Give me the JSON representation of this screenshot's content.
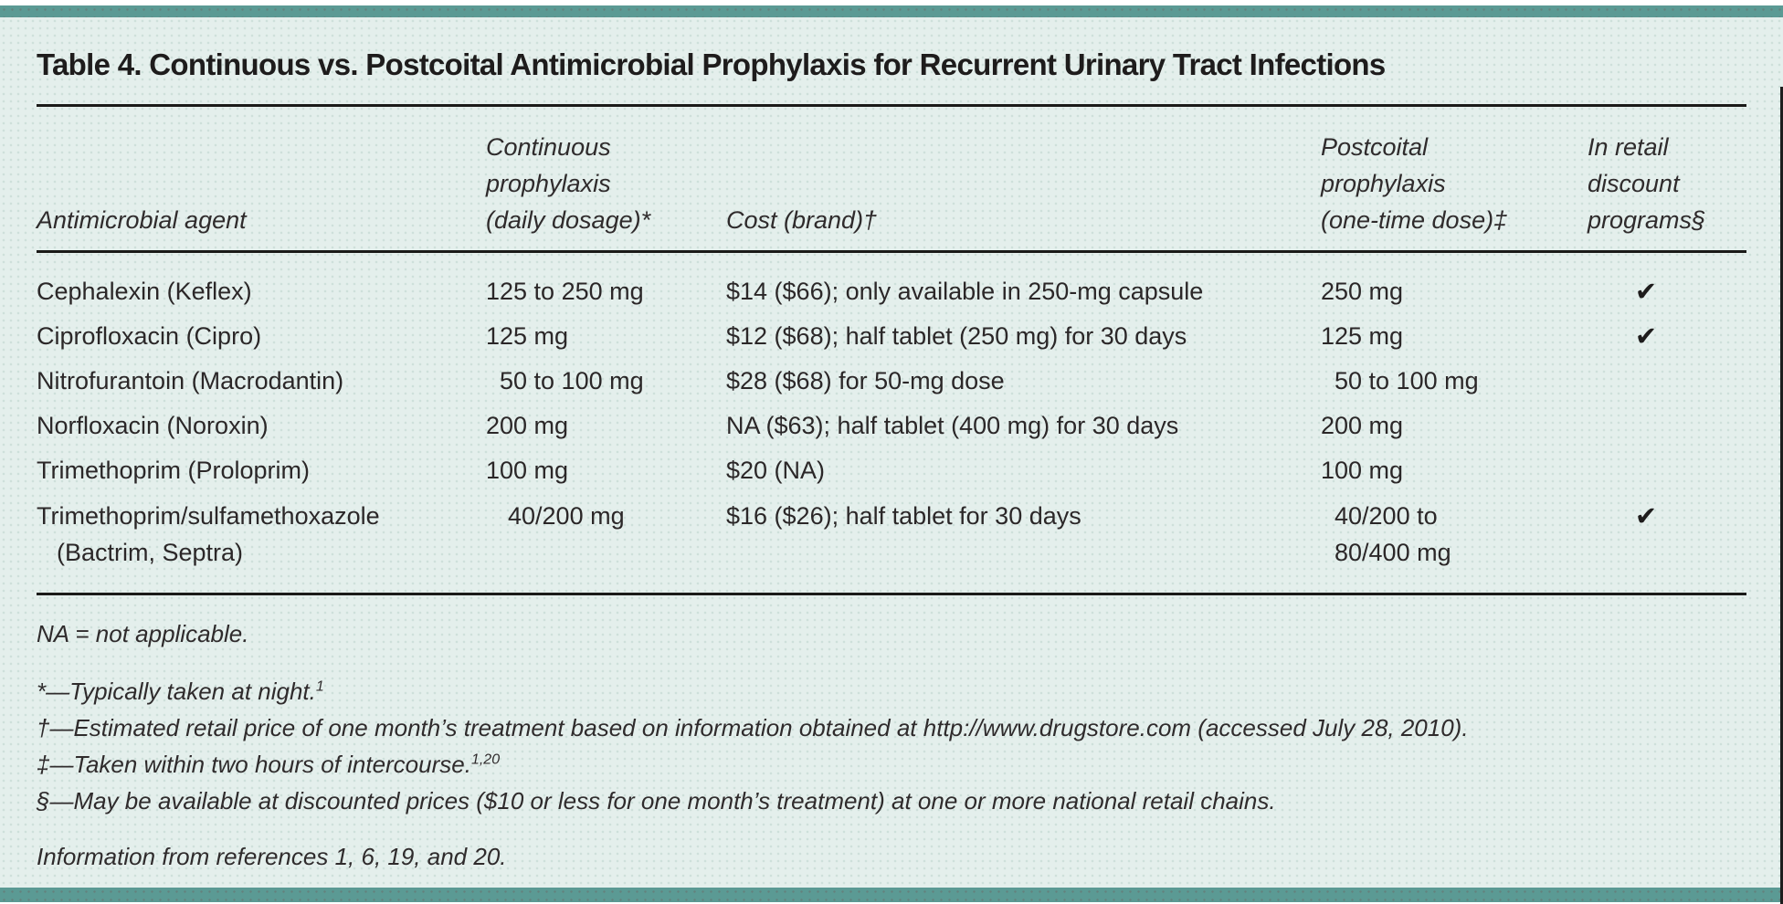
{
  "title": "Table 4. Continuous vs. Postcoital Antimicrobial Prophylaxis for Recurrent Urinary Tract Infections",
  "colors": {
    "accent_teal": "#5b9a94",
    "background_mint": "#e4efec",
    "text": "#2b2728",
    "rule": "#1a1a18"
  },
  "table": {
    "header": {
      "agent": "Antimicrobial agent",
      "continuous": {
        "l1": "Continuous",
        "l2": "prophylaxis",
        "l3": "(daily dosage)*"
      },
      "cost": "Cost (brand)†",
      "postcoital": {
        "l1": "Postcoital",
        "l2": "prophylaxis",
        "l3": "(one-time dose)‡"
      },
      "retail": {
        "l1": "In retail",
        "l2": "discount",
        "l3": "programs§"
      }
    },
    "rows": [
      {
        "agent": "Cephalexin (Keflex)",
        "agent2": "",
        "continuous": "125 to 250 mg",
        "cost": "$14 ($66); only available in 250-mg capsule",
        "postcoital": "250 mg",
        "postcoital2": "",
        "check": "✔"
      },
      {
        "agent": "Ciprofloxacin (Cipro)",
        "agent2": "",
        "continuous": "125 mg",
        "cost": "$12 ($68); half tablet (250 mg) for 30 days",
        "postcoital": "125 mg",
        "postcoital2": "",
        "check": "✔"
      },
      {
        "agent": "Nitrofurantoin (Macrodantin)",
        "agent2": "",
        "continuous": "50 to 100 mg",
        "cost": "$28 ($68) for 50-mg dose",
        "postcoital": "50 to 100 mg",
        "postcoital2": "",
        "check": ""
      },
      {
        "agent": "Norfloxacin (Noroxin)",
        "agent2": "",
        "continuous": "200 mg",
        "cost": "NA ($63); half tablet (400 mg) for 30 days",
        "postcoital": "200 mg",
        "postcoital2": "",
        "check": ""
      },
      {
        "agent": "Trimethoprim (Proloprim)",
        "agent2": "",
        "continuous": "100 mg",
        "cost": "$20 (NA)",
        "postcoital": "100 mg",
        "postcoital2": "",
        "check": ""
      },
      {
        "agent": "Trimethoprim/sulfamethoxazole",
        "agent2": "(Bactrim, Septra)",
        "continuous": "40/200 mg",
        "cost": "$16 ($26); half tablet for 30 days",
        "postcoital": "40/200 to",
        "postcoital2": "80/400 mg",
        "check": "✔"
      }
    ]
  },
  "footnotes": {
    "abbrev": "NA = not applicable.",
    "star": {
      "text": "*—Typically taken at night.",
      "sup": "1"
    },
    "dagger": {
      "text": "†—Estimated retail price of one month’s treatment based on information obtained at http://www.drugstore.com (accessed July 28, 2010).",
      "sup": ""
    },
    "ddagger": {
      "text": "‡—Taken within two hours of intercourse.",
      "sup": "1,20"
    },
    "section": {
      "text": "§—May be available at discounted prices ($10 or less for one month’s treatment) at one or more national retail chains.",
      "sup": ""
    },
    "source": "Information from references 1, 6, 19, and 20."
  }
}
